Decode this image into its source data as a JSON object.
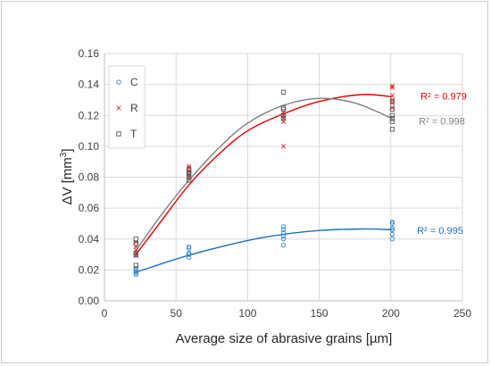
{
  "chart_data": {
    "type": "scatter",
    "xlabel": "Average size  of abrasive grains [µm]",
    "ylabel_main": "ΔV [mm",
    "ylabel_sup": "3",
    "ylabel_close": "]",
    "xlim": [
      0,
      250
    ],
    "ylim": [
      0,
      0.16
    ],
    "xticks": [
      "0",
      "50",
      "100",
      "150",
      "200",
      "250"
    ],
    "yticks": [
      "0.00",
      "0.02",
      "0.04",
      "0.06",
      "0.08",
      "0.10",
      "0.12",
      "0.14",
      "0.16"
    ],
    "grid": true,
    "legend_position": "top-left",
    "series": [
      {
        "name": "C",
        "marker": "circle",
        "color": "#2e86c8",
        "trend_color": "#1f6fbf",
        "r2_label": "R² = 0.995",
        "points": [
          [
            22,
            0.017
          ],
          [
            22,
            0.018
          ],
          [
            22,
            0.019
          ],
          [
            22,
            0.02
          ],
          [
            22,
            0.021
          ],
          [
            59,
            0.028
          ],
          [
            59,
            0.03
          ],
          [
            59,
            0.031
          ],
          [
            59,
            0.034
          ],
          [
            59,
            0.035
          ],
          [
            125,
            0.036
          ],
          [
            125,
            0.04
          ],
          [
            125,
            0.042
          ],
          [
            125,
            0.044
          ],
          [
            125,
            0.046
          ],
          [
            125,
            0.048
          ],
          [
            201,
            0.04
          ],
          [
            201,
            0.043
          ],
          [
            201,
            0.046
          ],
          [
            201,
            0.047
          ],
          [
            201,
            0.05
          ],
          [
            201,
            0.051
          ]
        ],
        "trend": [
          [
            22,
            0.0185
          ],
          [
            59,
            0.0295
          ],
          [
            100,
            0.039
          ],
          [
            125,
            0.043
          ],
          [
            150,
            0.0455
          ],
          [
            180,
            0.0465
          ],
          [
            201,
            0.046
          ]
        ]
      },
      {
        "name": "R",
        "marker": "x",
        "color": "#e03030",
        "trend_color": "#e00000",
        "r2_label": "R² = 0.979",
        "points": [
          [
            22,
            0.029
          ],
          [
            22,
            0.031
          ],
          [
            22,
            0.033
          ],
          [
            22,
            0.035
          ],
          [
            22,
            0.038
          ],
          [
            59,
            0.08
          ],
          [
            59,
            0.082
          ],
          [
            59,
            0.084
          ],
          [
            59,
            0.086
          ],
          [
            59,
            0.087
          ],
          [
            125,
            0.1
          ],
          [
            125,
            0.116
          ],
          [
            125,
            0.118
          ],
          [
            125,
            0.12
          ],
          [
            125,
            0.122
          ],
          [
            201,
            0.125
          ],
          [
            201,
            0.128
          ],
          [
            201,
            0.13
          ],
          [
            201,
            0.133
          ],
          [
            201,
            0.138
          ],
          [
            201,
            0.139
          ]
        ],
        "trend": [
          [
            22,
            0.03
          ],
          [
            40,
            0.052
          ],
          [
            59,
            0.075
          ],
          [
            80,
            0.095
          ],
          [
            100,
            0.11
          ],
          [
            125,
            0.121
          ],
          [
            150,
            0.129
          ],
          [
            180,
            0.1335
          ],
          [
            201,
            0.132
          ]
        ]
      },
      {
        "name": "T",
        "marker": "square",
        "color": "#555555",
        "trend_color": "#7f7f7f",
        "r2_label": "R² = 0.998",
        "points": [
          [
            22,
            0.023
          ],
          [
            22,
            0.03
          ],
          [
            22,
            0.031
          ],
          [
            22,
            0.037
          ],
          [
            22,
            0.04
          ],
          [
            59,
            0.078
          ],
          [
            59,
            0.08
          ],
          [
            59,
            0.082
          ],
          [
            59,
            0.083
          ],
          [
            59,
            0.085
          ],
          [
            125,
            0.118
          ],
          [
            125,
            0.12
          ],
          [
            125,
            0.124
          ],
          [
            125,
            0.125
          ],
          [
            125,
            0.135
          ],
          [
            201,
            0.111
          ],
          [
            201,
            0.116
          ],
          [
            201,
            0.118
          ],
          [
            201,
            0.12
          ],
          [
            201,
            0.124
          ],
          [
            201,
            0.129
          ]
        ],
        "trend": [
          [
            22,
            0.0325
          ],
          [
            40,
            0.056
          ],
          [
            59,
            0.078
          ],
          [
            80,
            0.099
          ],
          [
            100,
            0.115
          ],
          [
            125,
            0.1265
          ],
          [
            150,
            0.131
          ],
          [
            175,
            0.128
          ],
          [
            201,
            0.118
          ]
        ]
      }
    ]
  }
}
